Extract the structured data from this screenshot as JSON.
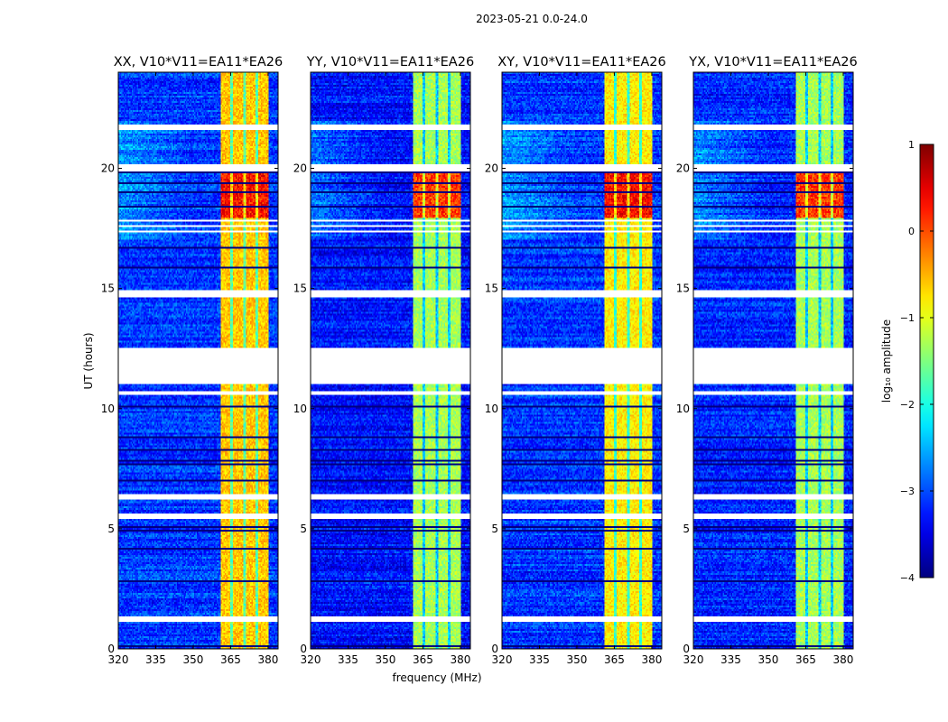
{
  "chart_data": {
    "type": "heatmap",
    "title": "2023-05-21 0.0-24.0",
    "xlabel": "frequency (MHz)",
    "ylabel": "UT (hours)",
    "xlim": [
      320,
      384
    ],
    "ylim": [
      0,
      24
    ],
    "xticks": [
      320,
      335,
      350,
      365,
      380
    ],
    "xtick_labels": [
      "320",
      "335",
      "350",
      "365",
      "380"
    ],
    "yticks": [
      0,
      5,
      10,
      15,
      20
    ],
    "ytick_labels": [
      "0",
      "5",
      "10",
      "15",
      "20"
    ],
    "panels": [
      {
        "title": "XX, V10*V11=EA11*EA26",
        "band_level": -0.6,
        "flare_level": 0.3,
        "background_level": -3.1
      },
      {
        "title": "YY, V10*V11=EA11*EA26",
        "band_level": -1.3,
        "flare_level": 0.1,
        "background_level": -3.3
      },
      {
        "title": "XY, V10*V11=EA11*EA26",
        "band_level": -0.8,
        "flare_level": 0.3,
        "background_level": -3.1
      },
      {
        "title": "YX, V10*V11=EA11*EA26",
        "band_level": -1.3,
        "flare_level": 0.1,
        "background_level": -3.2
      }
    ],
    "rfi_band_mhz": [
      361,
      380
    ],
    "flare_hours": [
      17.9,
      19.9
    ],
    "flagged_hours": [
      [
        21.6,
        21.85
      ],
      [
        19.9,
        20.15
      ],
      [
        17.3,
        17.4
      ],
      [
        17.55,
        17.65
      ],
      [
        17.75,
        17.85
      ],
      [
        14.6,
        14.95
      ],
      [
        11.0,
        12.55
      ],
      [
        10.6,
        10.75
      ],
      [
        6.2,
        6.45
      ],
      [
        5.4,
        5.6
      ],
      [
        1.1,
        1.35
      ]
    ],
    "colorbar": {
      "label": "log₁₀ amplitude",
      "range": [
        -4,
        1
      ],
      "ticks": [
        1,
        0,
        -1,
        -2,
        -3,
        -4
      ],
      "tick_labels": [
        "1",
        "0",
        "−1",
        "−2",
        "−3",
        "−4"
      ],
      "colormap": "jet"
    }
  }
}
